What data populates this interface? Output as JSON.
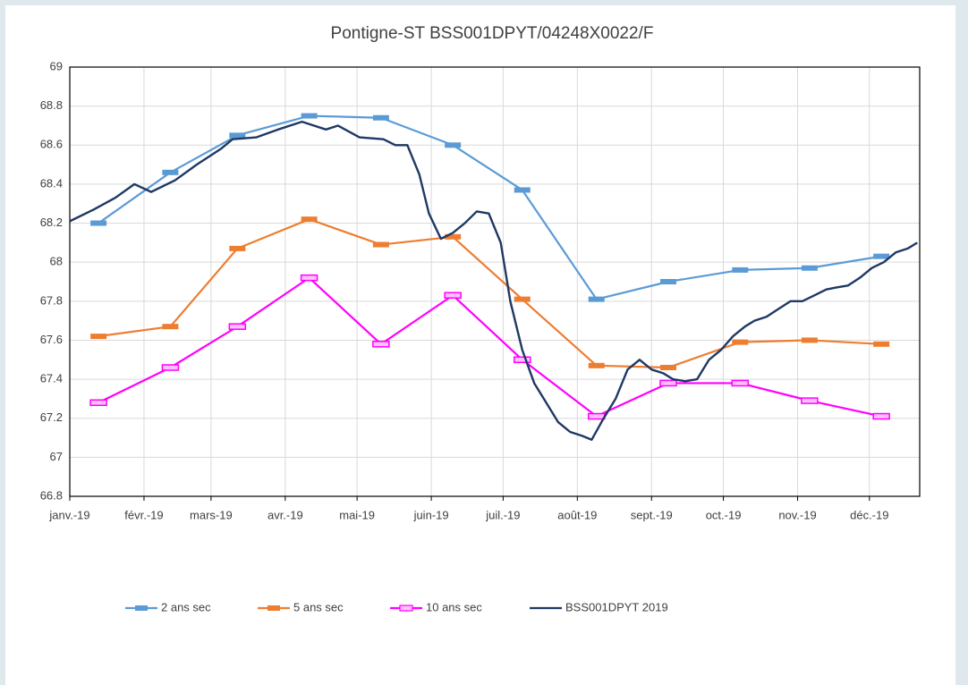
{
  "chart_data": {
    "type": "line",
    "title": "Pontigne-ST BSS001DPYT/04248X0022/F",
    "xlim": [
      0,
      355
    ],
    "xticks": [
      {
        "value": 0,
        "label": "janv.-19"
      },
      {
        "value": 31,
        "label": "févr.-19"
      },
      {
        "value": 59,
        "label": "mars-19"
      },
      {
        "value": 90,
        "label": "avr.-19"
      },
      {
        "value": 120,
        "label": "mai-19"
      },
      {
        "value": 151,
        "label": "juin-19"
      },
      {
        "value": 181,
        "label": "juil.-19"
      },
      {
        "value": 212,
        "label": "août-19"
      },
      {
        "value": 243,
        "label": "sept.-19"
      },
      {
        "value": 273,
        "label": "oct.-19"
      },
      {
        "value": 304,
        "label": "nov.-19"
      },
      {
        "value": 334,
        "label": "déc.-19"
      }
    ],
    "ylim": [
      66.8,
      69
    ],
    "yticks": [
      66.8,
      67,
      67.2,
      67.4,
      67.6,
      67.8,
      68,
      68.2,
      68.4,
      68.6,
      68.8,
      69
    ],
    "grid": true,
    "legend": "bottom",
    "series": [
      {
        "name": "2 ans sec",
        "color": "#5b9bd5",
        "marker": "dash",
        "x": [
          12,
          42,
          70,
          100,
          130,
          160,
          189,
          220,
          250,
          280,
          309,
          339
        ],
        "values": [
          68.2,
          68.46,
          68.65,
          68.75,
          68.74,
          68.6,
          68.37,
          67.81,
          67.9,
          67.96,
          67.97,
          68.03
        ]
      },
      {
        "name": "5 ans sec",
        "color": "#ed7d31",
        "marker": "dash",
        "x": [
          12,
          42,
          70,
          100,
          130,
          160,
          189,
          220,
          250,
          280,
          309,
          339
        ],
        "values": [
          67.62,
          67.67,
          68.07,
          68.22,
          68.09,
          68.13,
          67.81,
          67.47,
          67.46,
          67.59,
          67.6,
          67.58
        ]
      },
      {
        "name": "10 ans sec",
        "color": "#ff00ff",
        "marker": "hollow",
        "x": [
          12,
          42,
          70,
          100,
          130,
          160,
          189,
          220,
          250,
          280,
          309,
          339
        ],
        "values": [
          67.28,
          67.46,
          67.67,
          67.92,
          67.58,
          67.83,
          67.5,
          67.21,
          67.38,
          67.38,
          67.29,
          67.21
        ]
      },
      {
        "name": "BSS001DPYT 2019",
        "color": "#1f3864",
        "marker": "none",
        "x": [
          0,
          10,
          19,
          27,
          34,
          44,
          53,
          63,
          68,
          78,
          87,
          97,
          107,
          112,
          121,
          131,
          136,
          141,
          146,
          150,
          155,
          160,
          165,
          170,
          175,
          180,
          184,
          189,
          194,
          199,
          204,
          209,
          214,
          218,
          223,
          228,
          233,
          238,
          243,
          248,
          252,
          257,
          262,
          267,
          272,
          277,
          282,
          286,
          291,
          296,
          301,
          306,
          311,
          316,
          320,
          325,
          330,
          335,
          340,
          345,
          350,
          354
        ],
        "values": [
          68.21,
          68.27,
          68.33,
          68.4,
          68.36,
          68.42,
          68.5,
          68.58,
          68.63,
          68.64,
          68.68,
          68.72,
          68.68,
          68.7,
          68.64,
          68.63,
          68.6,
          68.6,
          68.45,
          68.25,
          68.12,
          68.15,
          68.2,
          68.26,
          68.25,
          68.1,
          67.8,
          67.55,
          67.38,
          67.28,
          67.18,
          67.13,
          67.11,
          67.09,
          67.2,
          67.3,
          67.45,
          67.5,
          67.45,
          67.43,
          67.4,
          67.39,
          67.4,
          67.5,
          67.55,
          67.62,
          67.67,
          67.7,
          67.72,
          67.76,
          67.8,
          67.8,
          67.83,
          67.86,
          67.87,
          67.88,
          67.92,
          67.97,
          68.0,
          68.05,
          68.07,
          68.1
        ]
      }
    ]
  }
}
